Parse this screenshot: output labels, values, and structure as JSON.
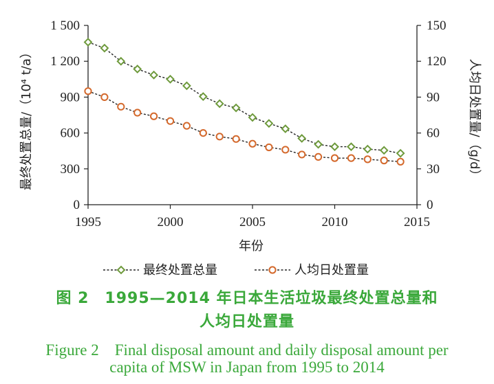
{
  "chart_data": {
    "type": "line",
    "x": [
      1995,
      1996,
      1997,
      1998,
      1999,
      2000,
      2001,
      2002,
      2003,
      2004,
      2005,
      2006,
      2007,
      2008,
      2009,
      2010,
      2011,
      2012,
      2013,
      2014
    ],
    "xlabel": "年份",
    "xticks": [
      "1995",
      "2000",
      "2005",
      "2010",
      "2015"
    ],
    "xlim": [
      1995,
      2015
    ],
    "ylabel_left": "最终处置总量/（10⁴ t/a）",
    "ylabel_right": "人均日处置量/（g/d）",
    "ylim_left": [
      0,
      1500
    ],
    "ylim_right": [
      0,
      150
    ],
    "yticks_left": [
      "0",
      "300",
      "600",
      "900",
      "1 200",
      "1 500"
    ],
    "yticks_right": [
      "0",
      "30",
      "60",
      "90",
      "120",
      "150"
    ],
    "legend_position": "bottom",
    "series": [
      {
        "name": "最终处置总量",
        "axis": "left",
        "marker": "diamond",
        "color": "#6e9a3c",
        "values": [
          1360,
          1310,
          1200,
          1135,
          1085,
          1050,
          995,
          905,
          845,
          810,
          730,
          680,
          635,
          555,
          505,
          485,
          485,
          465,
          455,
          430
        ]
      },
      {
        "name": "人均日处置量",
        "axis": "right",
        "marker": "circle",
        "color": "#d4692c",
        "values": [
          95,
          90,
          82,
          77,
          74,
          70,
          66,
          60,
          57,
          55,
          51,
          48,
          46,
          42,
          40,
          39,
          39,
          38,
          37,
          36
        ]
      }
    ]
  },
  "caption": {
    "cn_line1": "图 2　1995—2014 年日本生活垃圾最终处置总量和",
    "cn_line2": "人均日处置量",
    "en_line1": "Figure 2　Final disposal amount and daily disposal amount per",
    "en_line2": "capita of MSW in Japan from 1995 to 2014"
  }
}
